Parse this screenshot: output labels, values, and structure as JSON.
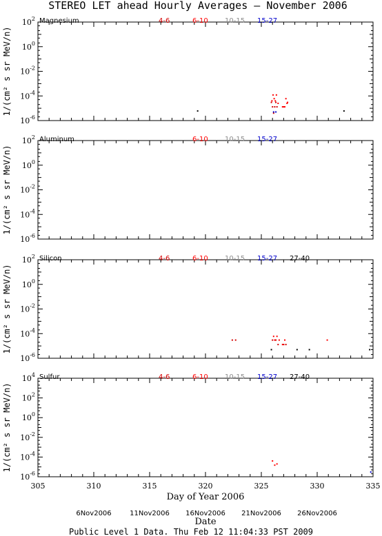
{
  "title": "STEREO LET ahead Hourly Averages – November 2006",
  "xlabel": "Day of Year 2006",
  "date_axis_label": "Date",
  "date_ticks": [
    {
      "x": 310,
      "label": "6Nov2006"
    },
    {
      "x": 315,
      "label": "11Nov2006"
    },
    {
      "x": 320,
      "label": "16Nov2006"
    },
    {
      "x": 325,
      "label": "21Nov2006"
    },
    {
      "x": 330,
      "label": "26Nov2006"
    }
  ],
  "footer": "Public Level 1 Data. Thu Feb 12 11:04:33 PST 2009",
  "legend_colors": {
    "4-6": "#d40000",
    "6-10": "#ff0000",
    "10-15": "#8c8c8c",
    "15-27": "#0000cc",
    "27-40": "#000000"
  },
  "chart_data": [
    {
      "type": "scatter",
      "panel": "Magnesium",
      "ylabel": "1/(cm² s sr MeV/n)",
      "xlim": [
        305,
        335
      ],
      "ylim_log10": [
        -6,
        2
      ],
      "y_scale": "log",
      "x_ticks": [
        305,
        310,
        315,
        320,
        325,
        330,
        335
      ],
      "y_ticks_exp": [
        2,
        0,
        -2,
        -4,
        -6
      ],
      "legend": [
        "4-6",
        "6-10",
        "10-15",
        "15-27"
      ],
      "series": [
        {
          "name": "4-6",
          "color": "#d40000",
          "points": [
            [
              325.9,
              3e-05
            ],
            [
              326.0,
              1.3e-05
            ],
            [
              326.1,
              4e-06
            ],
            [
              326.2,
              1.3e-05
            ],
            [
              326.3,
              3e-05
            ],
            [
              326.4,
              1.3e-05
            ]
          ]
        },
        {
          "name": "6-10",
          "color": "#ff0000",
          "points": [
            [
              325.95,
              4e-05
            ],
            [
              326.05,
              0.00012
            ],
            [
              326.15,
              6e-05
            ],
            [
              326.25,
              4e-05
            ],
            [
              326.35,
              0.00012
            ],
            [
              326.5,
              2.5e-05
            ],
            [
              326.9,
              1.3e-05
            ],
            [
              327.0,
              1.3e-05
            ],
            [
              327.1,
              1.3e-05
            ],
            [
              327.2,
              6e-05
            ],
            [
              327.3,
              2.5e-05
            ],
            [
              327.35,
              3e-05
            ]
          ]
        },
        {
          "name": "15-27",
          "color": "#0000cc",
          "points": [
            [
              326.1,
              5e-06
            ],
            [
              326.3,
              5e-06
            ]
          ]
        },
        {
          "name": "27-40",
          "color": "#000000",
          "points": [
            [
              319.3,
              6e-06
            ],
            [
              332.4,
              6e-06
            ]
          ]
        }
      ]
    },
    {
      "type": "scatter",
      "panel": "Aluminum",
      "ylabel": "1/(cm² s sr MeV/n)",
      "xlim": [
        305,
        335
      ],
      "ylim_log10": [
        -6,
        2
      ],
      "y_scale": "log",
      "x_ticks": [
        305,
        310,
        315,
        320,
        325,
        330,
        335
      ],
      "y_ticks_exp": [
        2,
        0,
        -2,
        -4,
        -6
      ],
      "legend": [
        "6-10",
        "10-15",
        "15-27"
      ],
      "series": []
    },
    {
      "type": "scatter",
      "panel": "Silicon",
      "ylabel": "1/(cm² s sr MeV/n)",
      "xlim": [
        305,
        335
      ],
      "ylim_log10": [
        -6,
        2
      ],
      "y_scale": "log",
      "x_ticks": [
        305,
        310,
        315,
        320,
        325,
        330,
        335
      ],
      "y_ticks_exp": [
        2,
        0,
        -2,
        -4,
        -6
      ],
      "legend": [
        "4-6",
        "6-10",
        "10-15",
        "15-27",
        "27-40"
      ],
      "series": [
        {
          "name": "4-6",
          "color": "#d40000",
          "points": [
            [
              322.4,
              3e-05
            ],
            [
              322.7,
              3e-05
            ],
            [
              326.0,
              3e-05
            ],
            [
              326.3,
              3e-05
            ],
            [
              326.5,
              1.3e-05
            ],
            [
              327.0,
              1.3e-05
            ],
            [
              327.2,
              1.3e-05
            ]
          ]
        },
        {
          "name": "6-10",
          "color": "#ff0000",
          "points": [
            [
              326.1,
              6e-05
            ],
            [
              326.2,
              3e-05
            ],
            [
              326.4,
              6e-05
            ],
            [
              326.6,
              3e-05
            ],
            [
              326.9,
              1.3e-05
            ],
            [
              327.1,
              3e-05
            ],
            [
              330.9,
              3e-05
            ]
          ]
        },
        {
          "name": "27-40",
          "color": "#000000",
          "points": [
            [
              325.9,
              5e-06
            ],
            [
              328.2,
              5e-06
            ],
            [
              329.3,
              5e-06
            ],
            [
              334.7,
              5e-06
            ]
          ]
        }
      ]
    },
    {
      "type": "scatter",
      "panel": "Sulfur",
      "ylabel": "1/(cm² s sr MeV/n)",
      "xlim": [
        305,
        335
      ],
      "ylim_log10": [
        -6,
        4
      ],
      "y_scale": "log",
      "x_ticks": [
        305,
        310,
        315,
        320,
        325,
        330,
        335
      ],
      "y_ticks_exp": [
        4,
        2,
        0,
        -2,
        -4,
        -6
      ],
      "legend": [
        "4-6",
        "6-10",
        "10-15",
        "15-27",
        "27-40"
      ],
      "series": [
        {
          "name": "6-10",
          "color": "#ff0000",
          "points": [
            [
              326.0,
              4e-05
            ],
            [
              326.2,
              1.5e-05
            ],
            [
              326.4,
              2e-05
            ]
          ]
        },
        {
          "name": "15-27",
          "color": "#0000cc",
          "points": [
            [
              334.8,
              3e-06
            ]
          ]
        }
      ]
    }
  ]
}
